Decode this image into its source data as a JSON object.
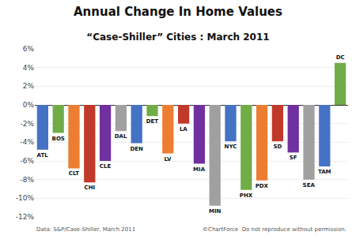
{
  "chart_data": {
    "type": "bar",
    "title": "Annual Change In Home Values",
    "subtitle": "“Case-Shiller” Cities : March 2011",
    "categories": [
      "ATL",
      "BOS",
      "CLT",
      "CHI",
      "CLE",
      "DAL",
      "DEN",
      "DET",
      "LV",
      "LA",
      "MIA",
      "MIN",
      "NYC",
      "PHX",
      "PDX",
      "SD",
      "SF",
      "SEA",
      "TAM",
      "DC"
    ],
    "values": [
      -4.8,
      -3.0,
      -6.8,
      -8.3,
      -6.0,
      -2.8,
      -4.1,
      -1.2,
      -5.2,
      -2.0,
      -6.3,
      -10.8,
      -3.9,
      -9.1,
      -8.1,
      -3.9,
      -5.1,
      -8.0,
      -6.6,
      4.5
    ],
    "colors": [
      "#4472C4",
      "#70AD47",
      "#ED7D31",
      "#C0392B",
      "#7030A0",
      "#A0A0A0",
      "#4472C4",
      "#70AD47",
      "#ED7D31",
      "#C0392B",
      "#7030A0",
      "#A0A0A0",
      "#4472C4",
      "#70AD47",
      "#ED7D31",
      "#C0392B",
      "#7030A0",
      "#A0A0A0",
      "#4472C4",
      "#70AD47"
    ],
    "ylim": [
      -12,
      6
    ],
    "yticks": [
      {
        "value": -12,
        "label": "-12%"
      },
      {
        "value": -10,
        "label": "-10%"
      },
      {
        "value": -8,
        "label": "-8%"
      },
      {
        "value": -6,
        "label": "-6%"
      },
      {
        "value": -4,
        "label": "-4%"
      },
      {
        "value": -2,
        "label": "-2%"
      },
      {
        "value": 0,
        "label": "0%"
      },
      {
        "value": 2,
        "label": "2%"
      },
      {
        "value": 4,
        "label": "4%"
      },
      {
        "value": 6,
        "label": "6%"
      }
    ],
    "grid": true,
    "tick_labels": "y",
    "annotations": [
      "Data: S&P/Case-Shiller, March 2011",
      "©ChartForce  Do not reproduce without permission."
    ]
  }
}
